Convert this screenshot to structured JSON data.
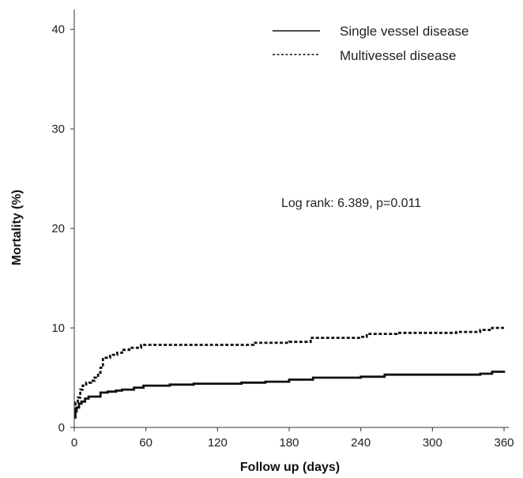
{
  "chart_data": {
    "type": "line",
    "xlabel": "Follow up (days)",
    "ylabel": "Mortality (%)",
    "xlim": [
      0,
      360
    ],
    "ylim": [
      0,
      42
    ],
    "x_ticks": [
      0,
      60,
      120,
      180,
      240,
      300,
      360
    ],
    "y_ticks": [
      0,
      10,
      20,
      30,
      40
    ],
    "grid": false,
    "legend_position": "top-right",
    "annotation": "Log rank: 6.389, p=0.011",
    "series": [
      {
        "name": "Single vessel disease",
        "style": "solid",
        "color": "#111111",
        "points": [
          [
            0,
            1.0
          ],
          [
            1,
            1.6
          ],
          [
            2,
            2.0
          ],
          [
            4,
            2.4
          ],
          [
            6,
            2.6
          ],
          [
            9,
            2.9
          ],
          [
            12,
            3.1
          ],
          [
            20,
            3.1
          ],
          [
            22,
            3.5
          ],
          [
            28,
            3.6
          ],
          [
            35,
            3.7
          ],
          [
            40,
            3.8
          ],
          [
            50,
            4.0
          ],
          [
            58,
            4.2
          ],
          [
            80,
            4.3
          ],
          [
            100,
            4.4
          ],
          [
            140,
            4.5
          ],
          [
            160,
            4.6
          ],
          [
            180,
            4.8
          ],
          [
            200,
            5.0
          ],
          [
            240,
            5.1
          ],
          [
            260,
            5.3
          ],
          [
            300,
            5.3
          ],
          [
            340,
            5.4
          ],
          [
            350,
            5.6
          ],
          [
            360,
            5.7
          ]
        ]
      },
      {
        "name": "Multivessel disease",
        "style": "dashed",
        "color": "#111111",
        "points": [
          [
            0,
            1.8
          ],
          [
            1,
            2.5
          ],
          [
            3,
            3.0
          ],
          [
            5,
            3.8
          ],
          [
            7,
            4.2
          ],
          [
            10,
            4.5
          ],
          [
            14,
            4.7
          ],
          [
            17,
            5.0
          ],
          [
            20,
            5.5
          ],
          [
            22,
            6.0
          ],
          [
            24,
            7.0
          ],
          [
            30,
            7.3
          ],
          [
            36,
            7.5
          ],
          [
            40,
            7.8
          ],
          [
            46,
            8.0
          ],
          [
            52,
            8.0
          ],
          [
            56,
            8.3
          ],
          [
            100,
            8.3
          ],
          [
            150,
            8.5
          ],
          [
            180,
            8.6
          ],
          [
            195,
            8.6
          ],
          [
            198,
            9.0
          ],
          [
            240,
            9.1
          ],
          [
            245,
            9.4
          ],
          [
            270,
            9.5
          ],
          [
            300,
            9.5
          ],
          [
            320,
            9.6
          ],
          [
            340,
            9.8
          ],
          [
            350,
            10.0
          ],
          [
            360,
            10.0
          ]
        ]
      }
    ]
  }
}
